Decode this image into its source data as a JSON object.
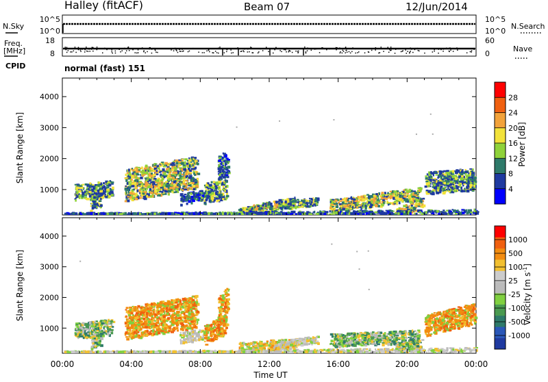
{
  "header": {
    "station": "Halley (fitACF)",
    "beam": "Beam 07",
    "date": "12/Jun/2014"
  },
  "top_panels": {
    "nsky_label": "N.Sky",
    "nsearch_label": "N.Search",
    "nsky_ticks": [
      "10^5",
      "10^0"
    ],
    "nsearch_ticks": [
      "10^5",
      "10^0"
    ],
    "freq_label": "Freq.",
    "freq_unit": "[MHz]",
    "freq_ticks": [
      "18",
      "8"
    ],
    "nave_label": "Nave",
    "nave_ticks": [
      "60",
      "0"
    ],
    "cpid_label": "CPID",
    "cpid_value": "normal (fast) 151"
  },
  "power_colorbar": {
    "label": "Power [dB]",
    "ticks": [
      "28",
      "24",
      "20",
      "16",
      "12",
      "8",
      "4"
    ],
    "colors": [
      "#0000ff",
      "#1f3aa0",
      "#2e7a6a",
      "#8fd23a",
      "#f2e23a",
      "#f2a23a",
      "#f06010",
      "#ff0000"
    ]
  },
  "velocity_colorbar": {
    "label": "Velocity [m s",
    "label_sup": "-1",
    "label_end": "]",
    "ticks": [
      "1000",
      "500",
      "100",
      "25",
      "-25",
      "-100",
      "-500",
      "-1000"
    ],
    "colors": [
      "#1f3aa0",
      "#2a57b8",
      "#2e7a6a",
      "#4a9a50",
      "#80d040",
      "#bbbbbb",
      "#cccccc",
      "#f2c030",
      "#f28c10",
      "#f06010",
      "#ff0000"
    ]
  },
  "chart_data": [
    {
      "type": "heatmap",
      "name_panel": "power",
      "ylabel": "Slant Range [km]",
      "yticks": [
        "4000",
        "3000",
        "2000",
        "1000"
      ],
      "ylim": [
        180,
        4600
      ],
      "xlim": [
        0,
        24
      ],
      "xticks": [
        0,
        4,
        8,
        12,
        16,
        20,
        24
      ],
      "xticklabels": [
        "00:00",
        "04:00",
        "08:00",
        "12:00",
        "16:00",
        "20:00",
        "00:00"
      ],
      "xlabel": "Time UT",
      "regions": [
        {
          "t": [
            0.7,
            2.9
          ],
          "r": [
            750,
            1250
          ],
          "level": "mid"
        },
        {
          "t": [
            1.6,
            2.2
          ],
          "r": [
            400,
            800
          ],
          "level": "mid"
        },
        {
          "t": [
            3.6,
            7.8
          ],
          "r": [
            850,
            1900
          ],
          "level": "high"
        },
        {
          "t": [
            6.8,
            8.2
          ],
          "r": [
            600,
            950
          ],
          "level": "low"
        },
        {
          "t": [
            8.2,
            9.5
          ],
          "r": [
            650,
            1300
          ],
          "level": "mid"
        },
        {
          "t": [
            9.0,
            9.6
          ],
          "r": [
            1400,
            2200
          ],
          "level": "low"
        },
        {
          "t": [
            10.2,
            13.5
          ],
          "r": [
            300,
            620
          ],
          "level": "high"
        },
        {
          "t": [
            12.5,
            14.8
          ],
          "r": [
            450,
            700
          ],
          "level": "mid"
        },
        {
          "t": [
            15.5,
            20.7
          ],
          "r": [
            480,
            900
          ],
          "level": "high"
        },
        {
          "t": [
            19.3,
            20.9
          ],
          "r": [
            250,
            600
          ],
          "level": "high"
        },
        {
          "t": [
            21.0,
            23.9
          ],
          "r": [
            950,
            1650
          ],
          "level": "mid"
        },
        {
          "t": [
            0.1,
            24.0
          ],
          "r": [
            185,
            320
          ],
          "level": "low"
        }
      ]
    },
    {
      "type": "heatmap",
      "name_panel": "velocity",
      "ylabel": "Slant Range [km]",
      "yticks": [
        "4000",
        "3000",
        "2000",
        "1000"
      ],
      "ylim": [
        180,
        4600
      ],
      "xlim": [
        0,
        24
      ],
      "xticks": [
        0,
        4,
        8,
        12,
        16,
        20,
        24
      ],
      "xticklabels": [
        "00:00",
        "04:00",
        "08:00",
        "12:00",
        "16:00",
        "20:00",
        "00:00"
      ],
      "xlabel": "Time UT",
      "regions": [
        {
          "t": [
            0.7,
            2.9
          ],
          "r": [
            750,
            1250
          ],
          "level": "green"
        },
        {
          "t": [
            1.6,
            2.2
          ],
          "r": [
            400,
            800
          ],
          "level": "green"
        },
        {
          "t": [
            3.6,
            7.8
          ],
          "r": [
            850,
            1900
          ],
          "level": "orange"
        },
        {
          "t": [
            6.8,
            8.2
          ],
          "r": [
            600,
            950
          ],
          "level": "grey"
        },
        {
          "t": [
            8.2,
            9.5
          ],
          "r": [
            650,
            1300
          ],
          "level": "orange"
        },
        {
          "t": [
            9.0,
            9.6
          ],
          "r": [
            1400,
            2200
          ],
          "level": "orange"
        },
        {
          "t": [
            10.2,
            13.5
          ],
          "r": [
            300,
            620
          ],
          "level": "yellow"
        },
        {
          "t": [
            12.5,
            14.8
          ],
          "r": [
            450,
            700
          ],
          "level": "grey"
        },
        {
          "t": [
            15.5,
            20.7
          ],
          "r": [
            480,
            900
          ],
          "level": "green"
        },
        {
          "t": [
            19.3,
            20.9
          ],
          "r": [
            250,
            600
          ],
          "level": "green"
        },
        {
          "t": [
            21.0,
            23.9
          ],
          "r": [
            950,
            1650
          ],
          "level": "orange"
        },
        {
          "t": [
            0.1,
            24.0
          ],
          "r": [
            185,
            320
          ],
          "level": "grey"
        }
      ]
    }
  ]
}
